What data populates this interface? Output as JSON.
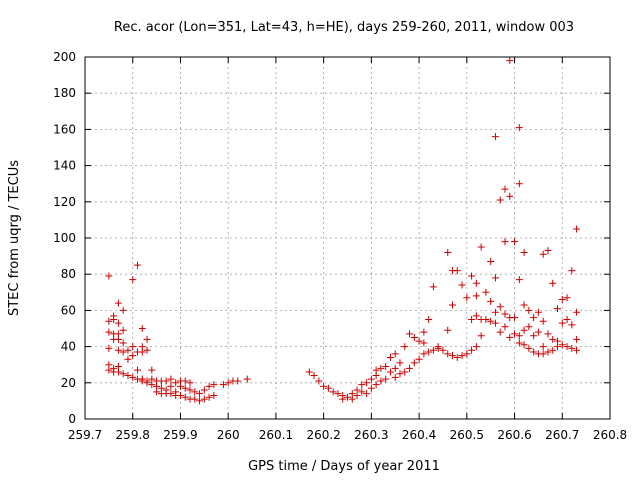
{
  "chart_data": {
    "type": "scatter",
    "title": "Rec. acor (Lon=351, Lat=43, h=HE), days 259-260, 2011, window 003",
    "xlabel": "GPS time / Days of year 2011",
    "ylabel": "STEC from uqrg / TECUs",
    "xlim": [
      259.7,
      260.8
    ],
    "ylim": [
      0,
      200
    ],
    "xticks": [
      "259.7",
      "259.8",
      "259.9",
      "260",
      "260.1",
      "260.2",
      "260.3",
      "260.4",
      "260.5",
      "260.6",
      "260.7",
      "260.8"
    ],
    "yticks": [
      "0",
      "20",
      "40",
      "60",
      "80",
      "100",
      "120",
      "140",
      "160",
      "180",
      "200"
    ],
    "grid": true,
    "marker": "+",
    "color": "#cc0000",
    "series": [
      {
        "points": [
          [
            259.75,
            79
          ],
          [
            259.75,
            54
          ],
          [
            259.75,
            48
          ],
          [
            259.75,
            39
          ],
          [
            259.75,
            30
          ],
          [
            259.75,
            27
          ],
          [
            259.76,
            57
          ],
          [
            259.76,
            55
          ],
          [
            259.76,
            47
          ],
          [
            259.76,
            44
          ],
          [
            259.76,
            28
          ],
          [
            259.76,
            26
          ],
          [
            259.77,
            64
          ],
          [
            259.77,
            53
          ],
          [
            259.77,
            47
          ],
          [
            259.77,
            44
          ],
          [
            259.77,
            38
          ],
          [
            259.77,
            29
          ],
          [
            259.77,
            26
          ],
          [
            259.78,
            60
          ],
          [
            259.78,
            49
          ],
          [
            259.78,
            42
          ],
          [
            259.78,
            37
          ],
          [
            259.78,
            25
          ],
          [
            259.79,
            38
          ],
          [
            259.79,
            33
          ],
          [
            259.79,
            24
          ],
          [
            259.8,
            77
          ],
          [
            259.8,
            40
          ],
          [
            259.8,
            35
          ],
          [
            259.8,
            23
          ],
          [
            259.81,
            85
          ],
          [
            259.81,
            37
          ],
          [
            259.81,
            27
          ],
          [
            259.81,
            22
          ],
          [
            259.82,
            50
          ],
          [
            259.82,
            40
          ],
          [
            259.82,
            37
          ],
          [
            259.82,
            22
          ],
          [
            259.82,
            21
          ],
          [
            259.83,
            44
          ],
          [
            259.83,
            38
          ],
          [
            259.83,
            21
          ],
          [
            259.83,
            20
          ],
          [
            259.84,
            27
          ],
          [
            259.84,
            22
          ],
          [
            259.84,
            19
          ],
          [
            259.85,
            21
          ],
          [
            259.85,
            18
          ],
          [
            259.85,
            15
          ],
          [
            259.86,
            21
          ],
          [
            259.86,
            17
          ],
          [
            259.86,
            14
          ],
          [
            259.87,
            21
          ],
          [
            259.87,
            16
          ],
          [
            259.87,
            14
          ],
          [
            259.88,
            22
          ],
          [
            259.88,
            18
          ],
          [
            259.88,
            14
          ],
          [
            259.89,
            20
          ],
          [
            259.89,
            15
          ],
          [
            259.89,
            13
          ],
          [
            259.9,
            21
          ],
          [
            259.9,
            18
          ],
          [
            259.9,
            13
          ],
          [
            259.91,
            21
          ],
          [
            259.91,
            17
          ],
          [
            259.91,
            12
          ],
          [
            259.92,
            20
          ],
          [
            259.92,
            16
          ],
          [
            259.92,
            11
          ],
          [
            259.93,
            15
          ],
          [
            259.93,
            11
          ],
          [
            259.94,
            14
          ],
          [
            259.94,
            10
          ],
          [
            259.95,
            16
          ],
          [
            259.95,
            11
          ],
          [
            259.96,
            18
          ],
          [
            259.96,
            12
          ],
          [
            259.97,
            19
          ],
          [
            259.97,
            13
          ],
          [
            259.99,
            19
          ],
          [
            260.0,
            20
          ],
          [
            260.01,
            21
          ],
          [
            260.02,
            21
          ],
          [
            260.04,
            22
          ],
          [
            260.17,
            26
          ],
          [
            260.18,
            24
          ],
          [
            260.19,
            21
          ],
          [
            260.2,
            18
          ],
          [
            260.21,
            17
          ],
          [
            260.22,
            15
          ],
          [
            260.23,
            14
          ],
          [
            260.24,
            13
          ],
          [
            260.24,
            11
          ],
          [
            260.25,
            12
          ],
          [
            260.26,
            11
          ],
          [
            260.26,
            14
          ],
          [
            260.27,
            13
          ],
          [
            260.27,
            16
          ],
          [
            260.28,
            15
          ],
          [
            260.28,
            19
          ],
          [
            260.29,
            14
          ],
          [
            260.29,
            20
          ],
          [
            260.3,
            17
          ],
          [
            260.3,
            22
          ],
          [
            260.31,
            19
          ],
          [
            260.31,
            24
          ],
          [
            260.31,
            27
          ],
          [
            260.32,
            21
          ],
          [
            260.32,
            28
          ],
          [
            260.33,
            22
          ],
          [
            260.33,
            29
          ],
          [
            260.34,
            26
          ],
          [
            260.34,
            34
          ],
          [
            260.35,
            23
          ],
          [
            260.35,
            28
          ],
          [
            260.35,
            36
          ],
          [
            260.36,
            25
          ],
          [
            260.36,
            31
          ],
          [
            260.37,
            26
          ],
          [
            260.37,
            40
          ],
          [
            260.38,
            28
          ],
          [
            260.38,
            47
          ],
          [
            260.39,
            31
          ],
          [
            260.39,
            45
          ],
          [
            260.4,
            33
          ],
          [
            260.4,
            43
          ],
          [
            260.41,
            36
          ],
          [
            260.41,
            42
          ],
          [
            260.41,
            48
          ],
          [
            260.42,
            37
          ],
          [
            260.42,
            55
          ],
          [
            260.43,
            38
          ],
          [
            260.43,
            73
          ],
          [
            260.44,
            39
          ],
          [
            260.44,
            40
          ],
          [
            260.45,
            38
          ],
          [
            260.46,
            36
          ],
          [
            260.46,
            49
          ],
          [
            260.46,
            92
          ],
          [
            260.47,
            35
          ],
          [
            260.47,
            63
          ],
          [
            260.47,
            82
          ],
          [
            260.48,
            34
          ],
          [
            260.48,
            82
          ],
          [
            260.49,
            35
          ],
          [
            260.49,
            74
          ],
          [
            260.5,
            36
          ],
          [
            260.5,
            67
          ],
          [
            260.51,
            38
          ],
          [
            260.51,
            55
          ],
          [
            260.51,
            79
          ],
          [
            260.52,
            40
          ],
          [
            260.52,
            57
          ],
          [
            260.52,
            68
          ],
          [
            260.52,
            75
          ],
          [
            260.53,
            46
          ],
          [
            260.53,
            55
          ],
          [
            260.53,
            95
          ],
          [
            260.54,
            55
          ],
          [
            260.54,
            70
          ],
          [
            260.55,
            54
          ],
          [
            260.55,
            65
          ],
          [
            260.55,
            87
          ],
          [
            260.56,
            53
          ],
          [
            260.56,
            59
          ],
          [
            260.56,
            78
          ],
          [
            260.56,
            156
          ],
          [
            260.57,
            48
          ],
          [
            260.57,
            62
          ],
          [
            260.57,
            121
          ],
          [
            260.58,
            51
          ],
          [
            260.58,
            58
          ],
          [
            260.58,
            98
          ],
          [
            260.58,
            127
          ],
          [
            260.59,
            45
          ],
          [
            260.59,
            56
          ],
          [
            260.59,
            123
          ],
          [
            260.59,
            198
          ],
          [
            260.6,
            47
          ],
          [
            260.6,
            56
          ],
          [
            260.6,
            98
          ],
          [
            260.61,
            42
          ],
          [
            260.61,
            46
          ],
          [
            260.61,
            77
          ],
          [
            260.61,
            130
          ],
          [
            260.61,
            161
          ],
          [
            260.62,
            41
          ],
          [
            260.62,
            49
          ],
          [
            260.62,
            63
          ],
          [
            260.62,
            92
          ],
          [
            260.63,
            39
          ],
          [
            260.63,
            51
          ],
          [
            260.63,
            60
          ],
          [
            260.64,
            37
          ],
          [
            260.64,
            46
          ],
          [
            260.64,
            56
          ],
          [
            260.65,
            36
          ],
          [
            260.65,
            48
          ],
          [
            260.65,
            59
          ],
          [
            260.66,
            36
          ],
          [
            260.66,
            40
          ],
          [
            260.66,
            54
          ],
          [
            260.66,
            91
          ],
          [
            260.67,
            37
          ],
          [
            260.67,
            47
          ],
          [
            260.67,
            93
          ],
          [
            260.68,
            38
          ],
          [
            260.68,
            44
          ],
          [
            260.68,
            75
          ],
          [
            260.69,
            40
          ],
          [
            260.69,
            43
          ],
          [
            260.69,
            61
          ],
          [
            260.7,
            41
          ],
          [
            260.7,
            53
          ],
          [
            260.7,
            66
          ],
          [
            260.71,
            40
          ],
          [
            260.71,
            55
          ],
          [
            260.71,
            67
          ],
          [
            260.72,
            39
          ],
          [
            260.72,
            52
          ],
          [
            260.72,
            82
          ],
          [
            260.73,
            38
          ],
          [
            260.73,
            44
          ],
          [
            260.73,
            59
          ],
          [
            260.73,
            105
          ]
        ]
      }
    ]
  }
}
